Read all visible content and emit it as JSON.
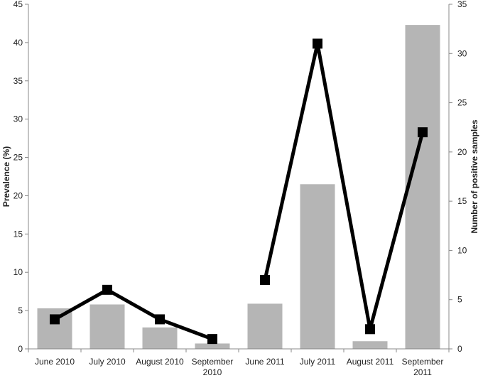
{
  "chart_data": {
    "type": "bar+line",
    "categories": [
      [
        "June 2010"
      ],
      [
        "July 2010"
      ],
      [
        "August 2010"
      ],
      [
        "September",
        "2010"
      ],
      [
        "June 2011"
      ],
      [
        "July 2011"
      ],
      [
        "August 2011"
      ],
      [
        "September",
        "2011"
      ]
    ],
    "left_axis": {
      "label": "Prevalence (%)",
      "ylim": [
        0,
        45
      ],
      "ticks": [
        0,
        5,
        10,
        15,
        20,
        25,
        30,
        35,
        40,
        45
      ]
    },
    "right_axis": {
      "label": "Number of positive samples",
      "ylim": [
        0,
        35
      ],
      "ticks": [
        0,
        5,
        10,
        15,
        20,
        25,
        30,
        35
      ]
    },
    "series": [
      {
        "type": "bar",
        "axis": "left",
        "color": "#b5b5b5",
        "values": [
          5.3,
          5.8,
          2.8,
          0.7,
          5.9,
          21.5,
          1.0,
          42.3
        ]
      },
      {
        "type": "line",
        "axis": "right",
        "color": "#000000",
        "values": [
          3,
          6,
          3,
          1,
          7,
          31,
          2,
          22
        ],
        "segments": [
          [
            0,
            3
          ],
          [
            4,
            7
          ]
        ]
      }
    ],
    "grid": false,
    "legend": "none"
  }
}
